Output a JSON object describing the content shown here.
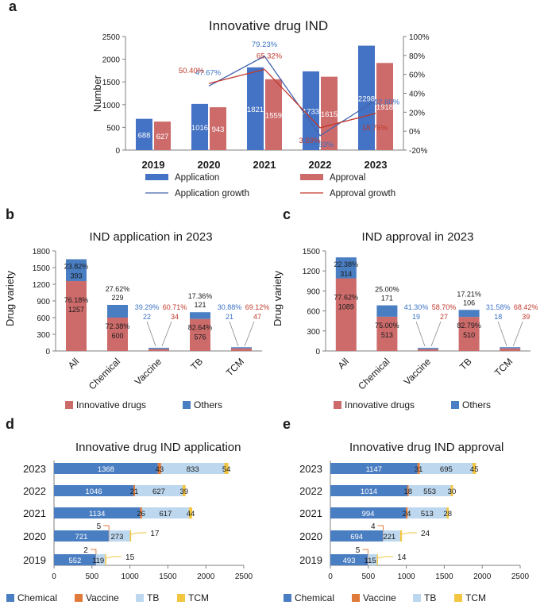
{
  "colors": {
    "application": "#4472C4",
    "approval": "#CD6B6B",
    "app_growth": "#4464AE",
    "appr_growth": "#C0392B",
    "innovative": "#CD6B6B",
    "others": "#4A7EC2",
    "chemical": "#4A7EC2",
    "vaccine": "#E07A3A",
    "tb": "#BDD7EE",
    "tcm": "#F2C641",
    "app_label": "#3A72C4",
    "appr_label": "#C0392B"
  },
  "chart_data": [
    {
      "panel": "a",
      "type": "bar",
      "title": "Innovative drug IND",
      "categories": [
        "2019",
        "2020",
        "2021",
        "2022",
        "2023"
      ],
      "series": [
        {
          "name": "Application",
          "values": [
            688,
            1016,
            1821,
            1733,
            2298
          ]
        },
        {
          "name": "Approval",
          "values": [
            627,
            943,
            1559,
            1615,
            1918
          ]
        }
      ],
      "growth_series": [
        {
          "name": "Application growth",
          "values": [
            null,
            47.67,
            79.23,
            -4.83,
            32.6
          ],
          "labels": [
            "",
            "47.67%",
            "79.23%",
            "-4.83%",
            "32.60%"
          ]
        },
        {
          "name": "Approval growth",
          "values": [
            null,
            50.4,
            65.32,
            3.59,
            18.76
          ],
          "labels": [
            "",
            "50.40%",
            "65.32%",
            "3.59%",
            "18.76%"
          ]
        }
      ],
      "ylabel": "Number",
      "ylim": [
        0,
        2500
      ],
      "yticks": [
        "0",
        "500",
        "1000",
        "1500",
        "2000",
        "2500"
      ],
      "y2lim": [
        -20,
        100
      ],
      "y2ticks": [
        "-20%",
        "0%",
        "20%",
        "40%",
        "60%",
        "80%",
        "100%"
      ]
    },
    {
      "panel": "b",
      "type": "bar",
      "title": "IND application in 2023",
      "categories": [
        "All",
        "Chemical",
        "Vaccine",
        "TB",
        "TCM"
      ],
      "series": [
        {
          "name": "Innovative drugs",
          "values": [
            1257,
            600,
            34,
            576,
            47
          ],
          "labels": [
            "76.18%",
            "72.38%",
            "60.71%",
            "82.64%",
            "69.12%"
          ]
        },
        {
          "name": "Others",
          "values": [
            393,
            229,
            22,
            121,
            21
          ],
          "labels": [
            "23.82%",
            "27.62%",
            "39.29%",
            "17.36%",
            "30.88%"
          ]
        }
      ],
      "ylabel": "Drug variety",
      "ylim": [
        0,
        1800
      ],
      "yticks": [
        "0",
        "300",
        "600",
        "900",
        "1200",
        "1500",
        "1800"
      ]
    },
    {
      "panel": "c",
      "type": "bar",
      "title": "IND approval in 2023",
      "categories": [
        "All",
        "Chemical",
        "Vaccine",
        "TB",
        "TCM"
      ],
      "series": [
        {
          "name": "Innovative drugs",
          "values": [
            1089,
            513,
            27,
            510,
            39
          ],
          "labels": [
            "77.62%",
            "75.00%",
            "58.70%",
            "82.79%",
            "68.42%"
          ]
        },
        {
          "name": "Others",
          "values": [
            314,
            171,
            19,
            106,
            18
          ],
          "labels": [
            "22.38%",
            "25.00%",
            "41.30%",
            "17.21%",
            "31.58%"
          ]
        }
      ],
      "ylabel": "Drug variety",
      "ylim": [
        0,
        1500
      ],
      "yticks": [
        "0",
        "300",
        "600",
        "900",
        "1200",
        "1500"
      ]
    },
    {
      "panel": "d",
      "type": "bar",
      "orientation": "horizontal",
      "title": "Innovative drug IND application",
      "categories": [
        "2023",
        "2022",
        "2021",
        "2020",
        "2019"
      ],
      "series": [
        {
          "name": "Chemical",
          "values": [
            1368,
            1046,
            1134,
            721,
            552
          ]
        },
        {
          "name": "Vaccine",
          "values": [
            43,
            21,
            26,
            5,
            2
          ]
        },
        {
          "name": "TB",
          "values": [
            833,
            627,
            617,
            273,
            119
          ]
        },
        {
          "name": "TCM",
          "values": [
            54,
            39,
            44,
            17,
            15
          ]
        }
      ],
      "xlim": [
        0,
        2500
      ],
      "xticks": [
        "0",
        "500",
        "1000",
        "1500",
        "2000",
        "2500"
      ]
    },
    {
      "panel": "e",
      "type": "bar",
      "orientation": "horizontal",
      "title": "Innovative drug IND approval",
      "categories": [
        "2023",
        "2022",
        "2021",
        "2020",
        "2019"
      ],
      "series": [
        {
          "name": "Chemical",
          "values": [
            1147,
            1014,
            994,
            694,
            493
          ]
        },
        {
          "name": "Vaccine",
          "values": [
            31,
            18,
            24,
            4,
            5
          ]
        },
        {
          "name": "TB",
          "values": [
            695,
            553,
            513,
            221,
            115
          ]
        },
        {
          "name": "TCM",
          "values": [
            45,
            30,
            28,
            24,
            14
          ]
        }
      ],
      "xlim": [
        0,
        2500
      ],
      "xticks": [
        "0",
        "500",
        "1000",
        "1500",
        "2000",
        "2500"
      ]
    }
  ]
}
